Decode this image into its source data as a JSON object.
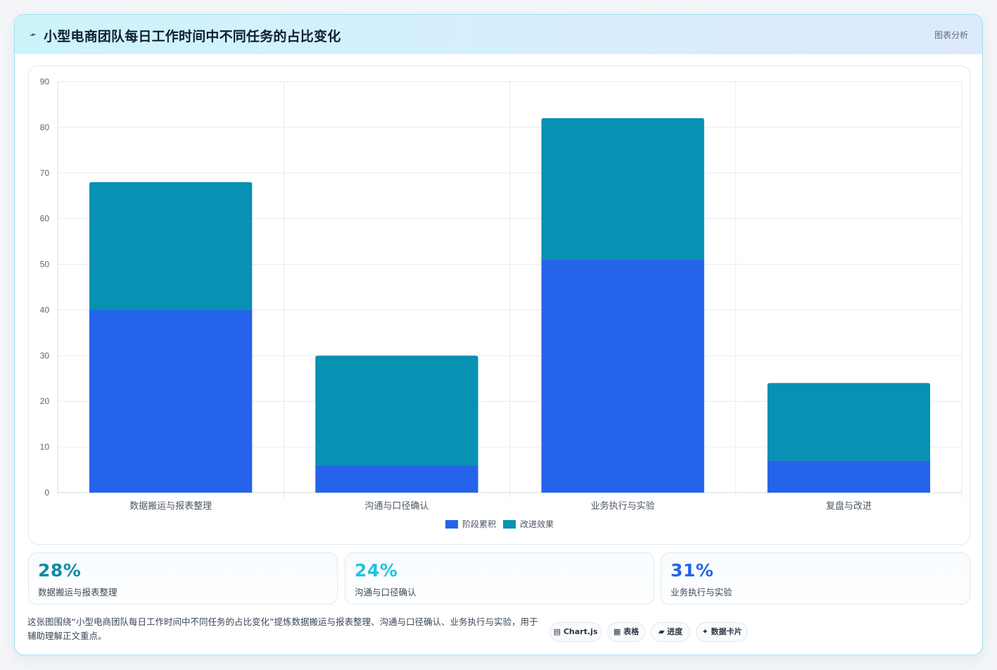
{
  "header": {
    "icon": "chart-icon",
    "title": "小型电商团队每日工作时间中不同任务的占比变化",
    "tag": "图表分析"
  },
  "chart_data": {
    "type": "bar",
    "stacked": true,
    "categories": [
      "数据搬运与报表整理",
      "沟通与口径确认",
      "业务执行与实验",
      "复盘与改进"
    ],
    "series": [
      {
        "name": "阶段累积",
        "values": [
          40,
          6,
          51,
          7
        ],
        "color": "#2563eb"
      },
      {
        "name": "改进效果",
        "values": [
          28,
          24,
          31,
          17
        ],
        "color": "#0891b2"
      }
    ],
    "ylim": [
      0,
      90
    ],
    "yticks": [
      0,
      10,
      20,
      30,
      40,
      50,
      60,
      70,
      80,
      90
    ],
    "grid": true,
    "legend": "bottom"
  },
  "stats": [
    {
      "value": "28%",
      "label": "数据搬运与报表整理",
      "color": "#0e8ba8"
    },
    {
      "value": "24%",
      "label": "沟通与口径确认",
      "color": "#22c3dd"
    },
    {
      "value": "31%",
      "label": "业务执行与实验",
      "color": "#2563eb"
    }
  ],
  "description": "这张图围绕“小型电商团队每日工作时间中不同任务的占比变化”提炼数据搬运与报表整理、沟通与口径确认、业务执行与实验，用于辅助理解正文重点。",
  "chips": [
    {
      "icon": "chart-icon",
      "glyph": "▤",
      "label": "Chart.js"
    },
    {
      "icon": "table-icon",
      "glyph": "▦",
      "label": "表格"
    },
    {
      "icon": "progress-icon",
      "glyph": "▰",
      "label": "进度"
    },
    {
      "icon": "sparkle-icon",
      "glyph": "✦",
      "label": "数据卡片"
    }
  ]
}
